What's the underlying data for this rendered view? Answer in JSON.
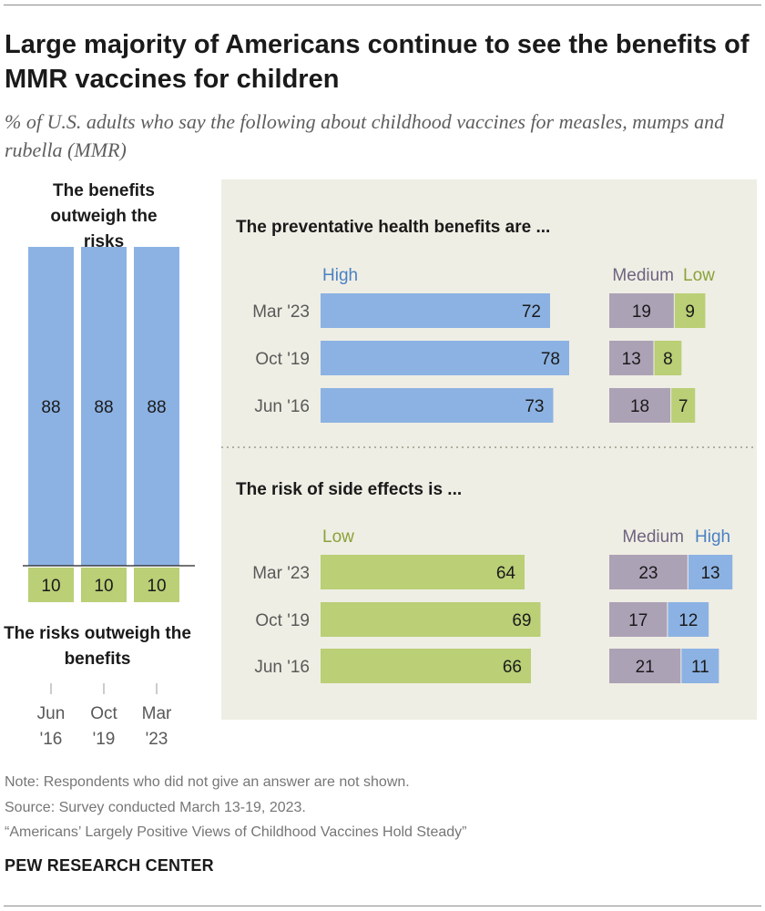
{
  "title": "Large majority of Americans continue to see the benefits of MMR vaccines for children",
  "subtitle": "% of U.S. adults who say the following about childhood vaccines for measles, mumps and rubella (MMR)",
  "colors": {
    "blue": "#8cb2e3",
    "green": "#bacf76",
    "purple": "#aca2b6",
    "panel": "#efeee4",
    "blue_text": "#4a81c4",
    "green_text": "#8aa23a",
    "purple_text": "#6d6480"
  },
  "chart_data": [
    {
      "type": "bar",
      "title_top": "The benefits outweigh the risks",
      "title_bottom": "The risks outweigh the benefits",
      "categories": [
        "Jun '16",
        "Oct '19",
        "Mar '23"
      ],
      "series": [
        {
          "name": "The benefits outweigh the risks",
          "values": [
            88,
            88,
            88
          ]
        },
        {
          "name": "The risks outweigh the benefits",
          "values": [
            10,
            10,
            10
          ]
        }
      ]
    },
    {
      "type": "bar",
      "title": "The preventative health benefits are ...",
      "categories": [
        "Mar '23",
        "Oct '19",
        "Jun '16"
      ],
      "series": [
        {
          "name": "High",
          "values": [
            72,
            78,
            73
          ]
        },
        {
          "name": "Medium",
          "values": [
            19,
            13,
            18
          ]
        },
        {
          "name": "Low",
          "values": [
            9,
            8,
            7
          ]
        }
      ]
    },
    {
      "type": "bar",
      "title": "The risk of side effects is ...",
      "categories": [
        "Mar '23",
        "Oct '19",
        "Jun '16"
      ],
      "series": [
        {
          "name": "Low",
          "values": [
            64,
            69,
            66
          ]
        },
        {
          "name": "Medium",
          "values": [
            23,
            17,
            21
          ]
        },
        {
          "name": "High",
          "values": [
            13,
            12,
            11
          ]
        }
      ]
    }
  ],
  "notes": {
    "note": "Note: Respondents who did not give an answer are not shown.",
    "source": "Source: Survey conducted March 13-19, 2023.",
    "report": "“Americans’ Largely Positive Views of Childhood Vaccines Hold Steady”",
    "brand": "PEW RESEARCH CENTER"
  }
}
